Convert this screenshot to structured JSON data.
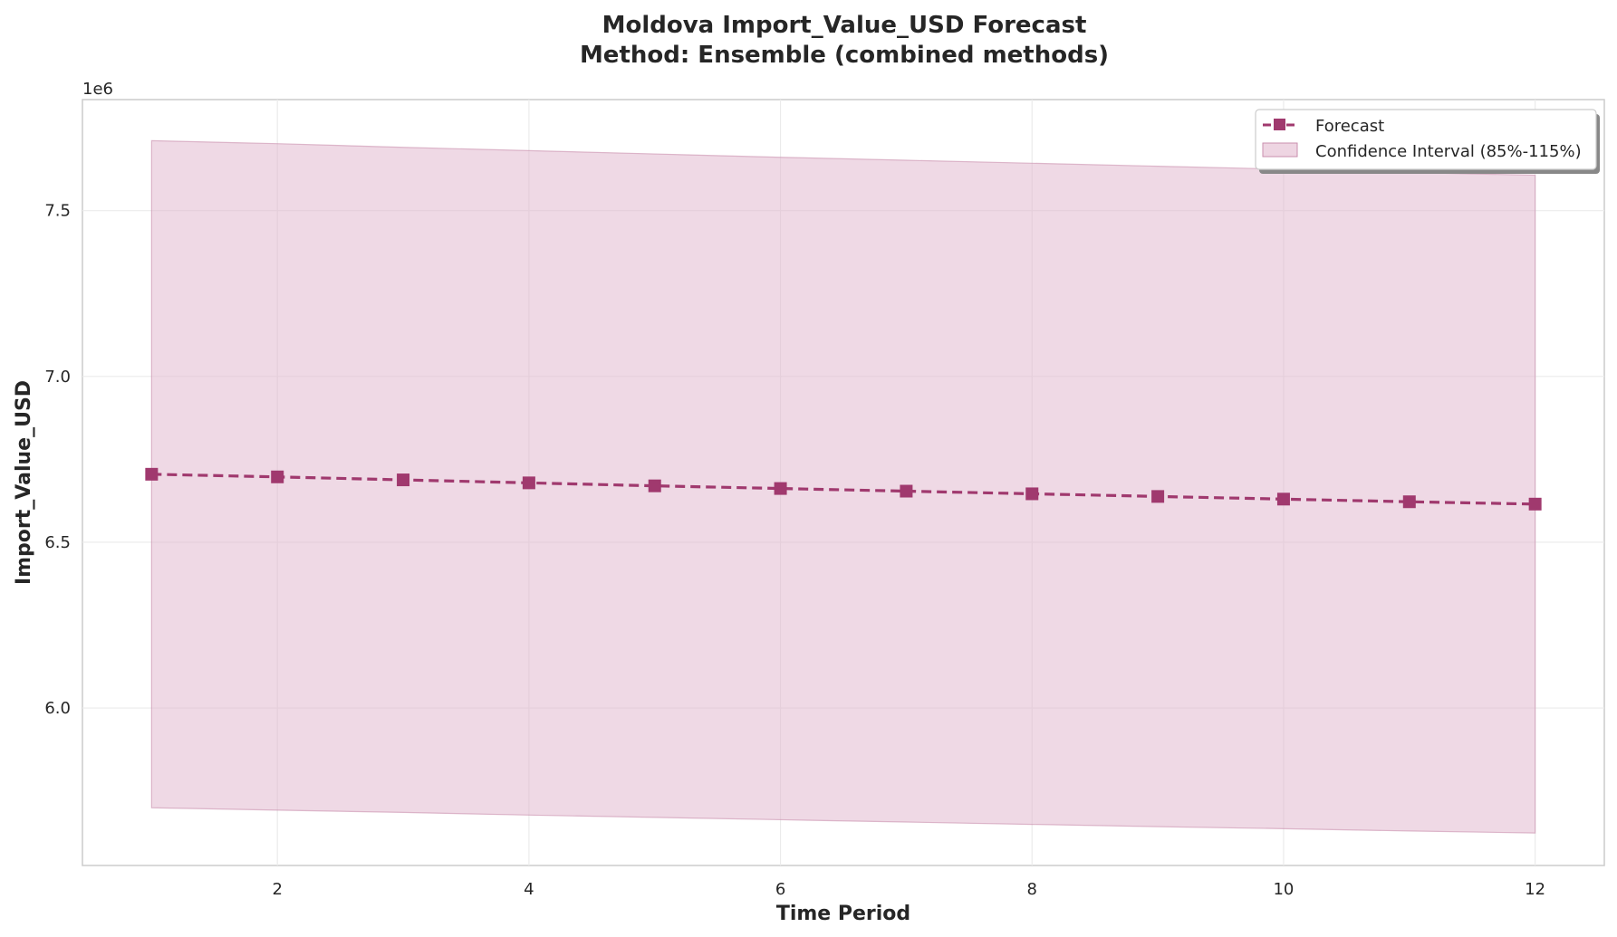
{
  "chart_data": {
    "type": "line",
    "title_line1": "Moldova Import_Value_USD Forecast",
    "title_line2": "Method: Ensemble (combined methods)",
    "xlabel": "Time Period",
    "ylabel": "Import_Value_USD",
    "y_offset_label": "1e6",
    "y_scale": 1000000,
    "xlim": [
      0.45,
      12.55
    ],
    "ylim": [
      5525000,
      7835000
    ],
    "x_ticks": [
      2,
      4,
      6,
      8,
      10,
      12
    ],
    "y_ticks": [
      6.0,
      6.5,
      7.0,
      7.5
    ],
    "grid": true,
    "legend_position": "top-right",
    "colors": {
      "line": "#a0396e",
      "band": "#e0b3cb",
      "band_edge": "#c98fae",
      "axis": "#cccccc",
      "text": "#262626"
    },
    "series": [
      {
        "name": "Forecast",
        "x": [
          1,
          2,
          3,
          4,
          5,
          6,
          7,
          8,
          9,
          10,
          11,
          12
        ],
        "values": [
          6705000,
          6697000,
          6688000,
          6679000,
          6670000,
          6662000,
          6654000,
          6646000,
          6638000,
          6630000,
          6622000,
          6615000
        ]
      }
    ],
    "band": {
      "name": "Confidence Interval (85%-115%)",
      "x": [
        1,
        2,
        3,
        4,
        5,
        6,
        7,
        8,
        9,
        10,
        11,
        12
      ],
      "lower": [
        5699000,
        5692000,
        5685000,
        5677000,
        5670000,
        5663000,
        5656000,
        5649000,
        5642000,
        5636000,
        5629000,
        5623000
      ],
      "upper": [
        7711000,
        7702000,
        7691000,
        7681000,
        7671000,
        7661000,
        7652000,
        7643000,
        7634000,
        7625000,
        7615000,
        7607000
      ]
    }
  }
}
